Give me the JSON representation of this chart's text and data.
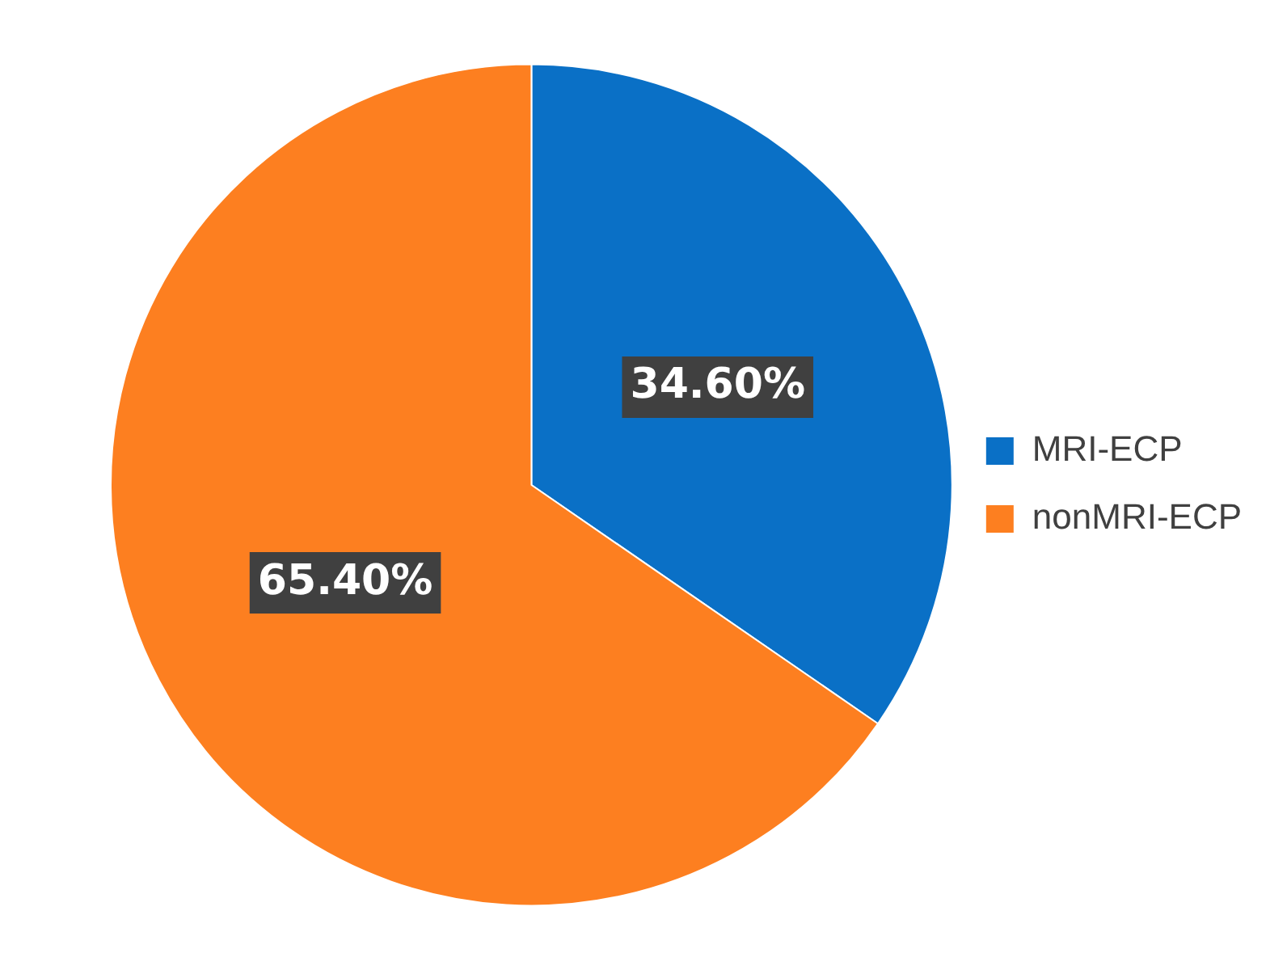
{
  "chart_data": {
    "type": "pie",
    "categories": [
      "MRI-ECP",
      "nonMRI-ECP"
    ],
    "values": [
      34.6,
      65.4
    ],
    "colors": [
      "#0a70c6",
      "#fd7f20"
    ],
    "value_labels": [
      "34.60%",
      "65.40%"
    ],
    "legend": "right"
  }
}
